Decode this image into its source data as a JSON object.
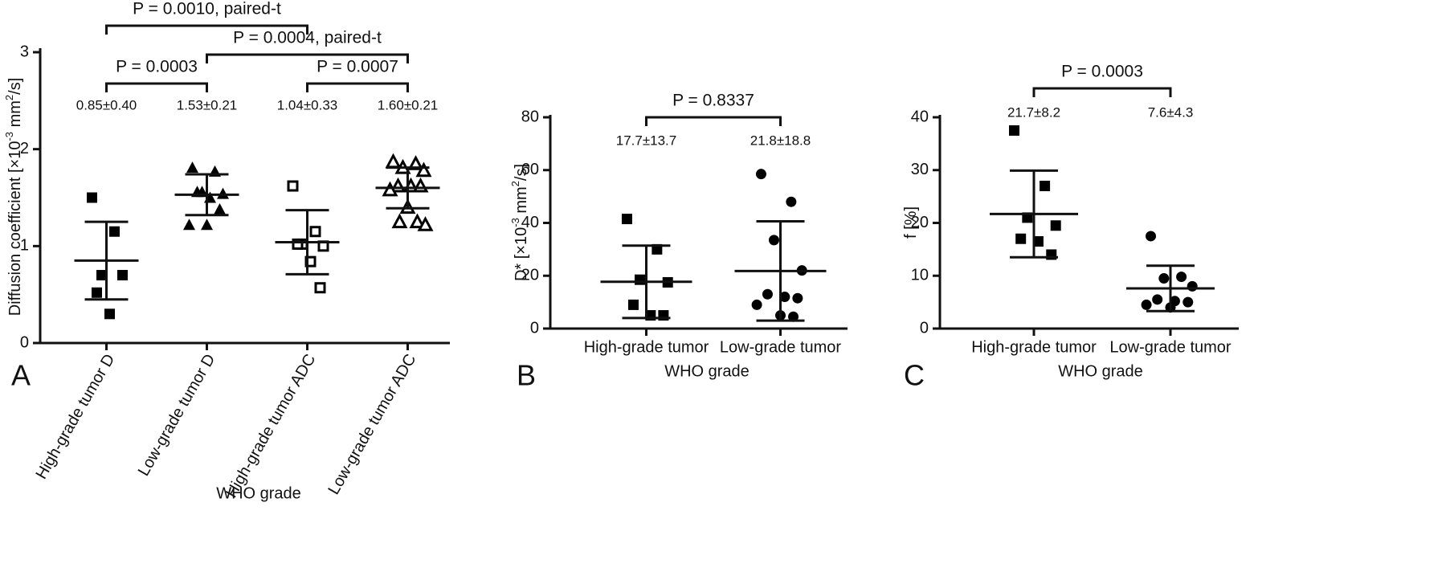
{
  "chart_data": [
    {
      "type": "dot",
      "panel": "A",
      "color": "#000",
      "ylabel": [
        "Diffusion coefficient [×10",
        "-3",
        " mm",
        "2",
        "/s]"
      ],
      "xlabel": "WHO grade",
      "rotate_xticks": true,
      "categories": [
        "High-grade tumor D",
        "Low-grade tumor D",
        "High-grade tumor ADC",
        "Low-grade tumor ADC"
      ],
      "markers": [
        "square",
        "triangle",
        "open-square",
        "open-triangle"
      ],
      "values": [
        [
          1.5,
          1.15,
          0.7,
          0.7,
          0.52,
          0.3
        ],
        [
          1.81,
          1.77,
          1.56,
          1.54,
          1.56,
          1.5,
          1.38,
          1.22,
          1.22
        ],
        [
          1.62,
          1.15,
          1.02,
          1.0,
          1.02,
          0.84,
          0.57
        ],
        [
          1.87,
          1.85,
          1.81,
          1.78,
          1.62,
          1.62,
          1.62,
          1.58,
          1.4,
          1.25,
          1.25,
          1.22
        ]
      ],
      "means": [
        0.85,
        1.53,
        1.04,
        1.6
      ],
      "sds": [
        0.4,
        0.21,
        0.33,
        0.21
      ],
      "value_labels": [
        "0.85±0.40",
        "1.53±0.21",
        "1.04±0.33",
        "1.60±0.21"
      ],
      "ylim": [
        0,
        3
      ],
      "yticks": [
        0,
        1,
        2,
        3
      ],
      "brackets": [
        {
          "label": "P = 0.0010, paired-t",
          "between": [
            0,
            2
          ]
        },
        {
          "label": "P = 0.0004, paired-t",
          "between": [
            1,
            3
          ]
        },
        {
          "label": "P = 0.0003",
          "between": [
            0,
            1
          ]
        },
        {
          "label": "P = 0.0007",
          "between": [
            2,
            3
          ]
        }
      ]
    },
    {
      "type": "dot",
      "panel": "B",
      "color": "#000",
      "ylabel": [
        "D* [×10",
        "-3",
        " mm",
        "2",
        "/s]"
      ],
      "xlabel": "WHO grade",
      "rotate_xticks": false,
      "categories": [
        "High-grade tumor",
        "Low-grade tumor"
      ],
      "markers": [
        "square",
        "circle"
      ],
      "values": [
        [
          41.5,
          30,
          18.5,
          17.5,
          9,
          5,
          5
        ],
        [
          58.5,
          48,
          33.5,
          22,
          13,
          12,
          11.5,
          9,
          5,
          4.5
        ]
      ],
      "means": [
        17.7,
        21.8
      ],
      "sds": [
        13.7,
        18.8
      ],
      "value_labels": [
        "17.7±13.7",
        "21.8±18.8"
      ],
      "ylim": [
        0,
        80
      ],
      "yticks": [
        0,
        20,
        40,
        60,
        80
      ],
      "brackets": [
        {
          "label": "P = 0.8337",
          "between": [
            0,
            1
          ]
        }
      ]
    },
    {
      "type": "dot",
      "panel": "C",
      "color": "#000",
      "ylabel": [
        "f [%]"
      ],
      "xlabel": "WHO grade",
      "rotate_xticks": false,
      "categories": [
        "High-grade tumor",
        "Low-grade tumor"
      ],
      "markers": [
        "square",
        "circle"
      ],
      "values": [
        [
          37.5,
          27,
          21,
          19.5,
          17,
          16.5,
          14
        ],
        [
          17.5,
          9.8,
          9.5,
          8.0,
          5.5,
          5.2,
          5.0,
          4.5,
          4.0
        ]
      ],
      "means": [
        21.7,
        7.6
      ],
      "sds": [
        8.2,
        4.3
      ],
      "value_labels": [
        "21.7±8.2",
        "7.6±4.3"
      ],
      "ylim": [
        0,
        40
      ],
      "yticks": [
        0,
        10,
        20,
        30,
        40
      ],
      "brackets": [
        {
          "label": "P = 0.0003",
          "between": [
            0,
            1
          ]
        }
      ]
    }
  ]
}
